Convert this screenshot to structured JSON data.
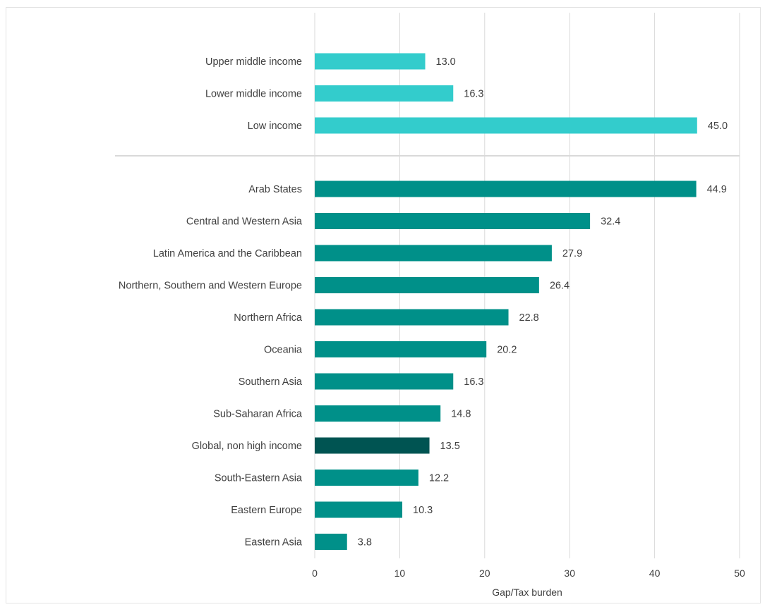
{
  "chart_data": {
    "type": "bar",
    "orientation": "horizontal",
    "xlabel": "Gap/Tax burden",
    "xlim": [
      0,
      50
    ],
    "xticks": [
      0,
      10,
      20,
      30,
      40,
      50
    ],
    "grid": true,
    "groups": [
      {
        "color": "#33cccc",
        "categories": [
          "Upper middle income",
          "Lower middle income",
          "Low income"
        ],
        "values": [
          13.0,
          16.3,
          45.0
        ],
        "labels": [
          "13.0",
          "16.3",
          "45.0"
        ]
      },
      {
        "color": "#009089",
        "highlight": {
          "category": "Global, non high income",
          "color": "#005452"
        },
        "categories": [
          "Arab States",
          "Central and Western Asia",
          "Latin America and the Caribbean",
          "Northern, Southern and Western Europe",
          "Northern Africa",
          "Oceania",
          "Southern Asia",
          "Sub-Saharan Africa",
          "Global, non high income",
          "South-Eastern Asia",
          "Eastern Europe",
          "Eastern Asia"
        ],
        "values": [
          44.9,
          32.4,
          27.9,
          26.4,
          22.8,
          20.2,
          16.3,
          14.8,
          13.5,
          12.2,
          10.3,
          3.8
        ],
        "labels": [
          "44.9",
          "32.4",
          "27.9",
          "26.4",
          "22.8",
          "20.2",
          "16.3",
          "14.8",
          "13.5",
          "12.2",
          "10.3",
          "3.8"
        ]
      }
    ]
  }
}
